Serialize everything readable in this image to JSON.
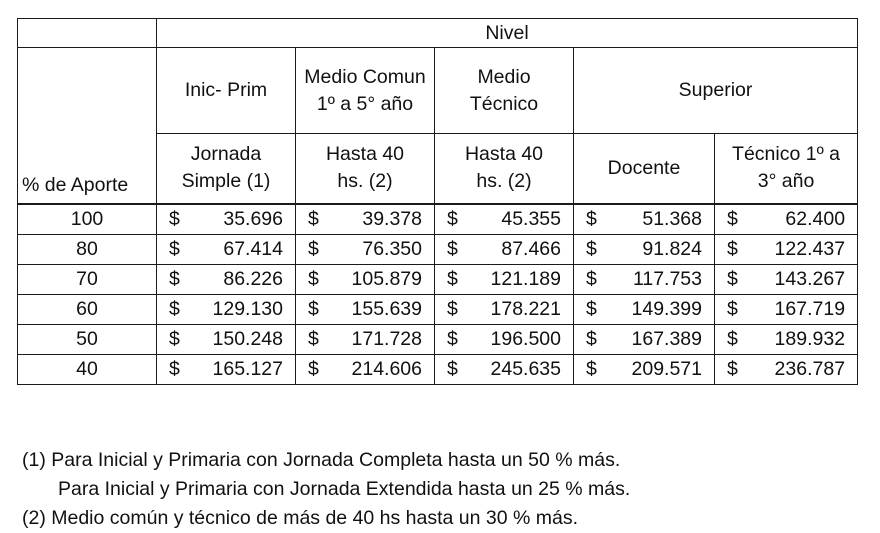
{
  "table": {
    "group_header": "Nivel",
    "row_header": "% de Aporte",
    "levels": [
      "Inic- Prim",
      "Medio Comun 1º a 5° año",
      "Medio Técnico",
      "Superior"
    ],
    "sub_headers": [
      "Jornada Simple (1)",
      "Hasta 40 hs. (2)",
      "Hasta 40 hs. (2)",
      "Docente",
      "Técnico 1º a 3° año"
    ],
    "currency_symbol": "$",
    "rows": [
      {
        "aporte": "100",
        "values": [
          "35.696",
          "39.378",
          "45.355",
          "51.368",
          "62.400"
        ]
      },
      {
        "aporte": "80",
        "values": [
          "67.414",
          "76.350",
          "87.466",
          "91.824",
          "122.437"
        ]
      },
      {
        "aporte": "70",
        "values": [
          "86.226",
          "105.879",
          "121.189",
          "117.753",
          "143.267"
        ]
      },
      {
        "aporte": "60",
        "values": [
          "129.130",
          "155.639",
          "178.221",
          "149.399",
          "167.719"
        ]
      },
      {
        "aporte": "50",
        "values": [
          "150.248",
          "171.728",
          "196.500",
          "167.389",
          "189.932"
        ]
      },
      {
        "aporte": "40",
        "values": [
          "165.127",
          "214.606",
          "245.635",
          "209.571",
          "236.787"
        ]
      }
    ]
  },
  "notes": [
    "(1) Para Inicial y Primaria con Jornada Completa hasta un 50 % más.",
    "Para Inicial y Primaria con Jornada Extendida hasta un 25 % más.",
    "(2) Medio común y técnico de más de 40 hs hasta un 30 % más."
  ]
}
